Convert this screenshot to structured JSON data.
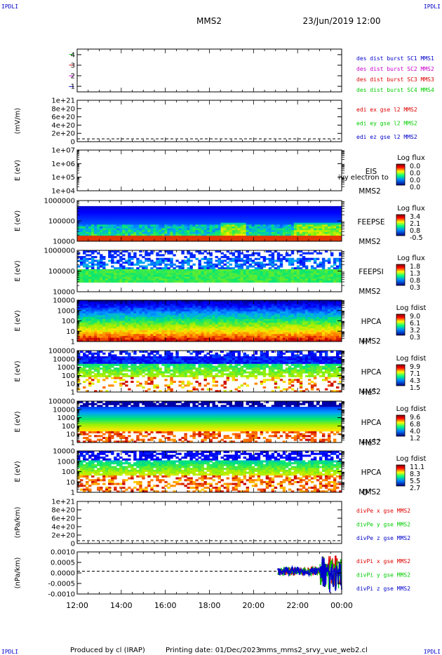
{
  "header": {
    "corner_label": "IPDLI",
    "spacecraft": "MMS2",
    "datetime": "23/Jun/2019 12:00"
  },
  "footer": {
    "produced_by": "Produced by cl (IRAP)",
    "printing_date": "Printing date: 01/Dec/2023",
    "script_name": "mms_mms2_srvy_vue_web2.cl"
  },
  "colors": {
    "panel_border": "#000000",
    "red": "#e00000",
    "green": "#00cc00",
    "blue": "#0000cc",
    "magenta": "#cc00cc"
  },
  "chart_data": [
    {
      "type": "line",
      "id": "burst",
      "ylabel": "",
      "yticks": [
        "1",
        "2",
        "3",
        "4"
      ],
      "ylim": [
        0.5,
        4.5
      ],
      "legend": [
        {
          "text": "des dist burst SC1 MMS1",
          "color": "#0000cc"
        },
        {
          "text": "des dist burst SC2 MMS2",
          "color": "#cc00cc"
        },
        {
          "text": "des dist burst SC3 MMS3",
          "color": "#e00000"
        },
        {
          "text": "des dist burst SC4 MMS4",
          "color": "#00cc00"
        }
      ],
      "segments": [
        {
          "y": 4,
          "x_hours": [
            11.95,
            12.0
          ],
          "color": "#00cc00"
        },
        {
          "y": 3,
          "x_hours": [
            11.95,
            12.0
          ],
          "color": "#e00000"
        },
        {
          "y": 2,
          "x_hours": [
            11.95,
            12.0
          ],
          "color": "#cc00cc"
        },
        {
          "y": 1,
          "x_hours": [
            11.95,
            12.0
          ],
          "color": "#0000cc"
        }
      ]
    },
    {
      "type": "line",
      "id": "edi",
      "ylabel": "(mV/m)",
      "yticks": [
        "0",
        "2e+20",
        "4e+20",
        "6e+20",
        "8e+20",
        "1e+21"
      ],
      "ylim": [
        0,
        1e+21
      ],
      "legend": [
        {
          "text": "edi ex gse l2 MMS2",
          "color": "#e00000"
        },
        {
          "text": "edi ey gse l2 MMS2",
          "color": "#00cc00"
        },
        {
          "text": "edi ez gse l2 MMS2",
          "color": "#0000cc"
        }
      ]
    },
    {
      "type": "heatmap",
      "id": "eis",
      "ylabel": "E (eV)",
      "yticks": [
        "1e+04",
        "1e+05",
        "1e+06",
        "1e+07"
      ],
      "scale": "log",
      "side_labels": [
        "EIS",
        "MMS2"
      ],
      "overlay_text": "ivy electron to",
      "colorbar": {
        "title": "Log flux",
        "ticks": [
          "0.0",
          "0.0",
          "0.0",
          "0.0"
        ]
      }
    },
    {
      "type": "heatmap",
      "id": "feepse",
      "ylabel": "E (eV)",
      "yticks": [
        "10000",
        "100000",
        "1000000"
      ],
      "scale": "log",
      "side_labels": [
        "FEEPSE",
        "MMS2"
      ],
      "colorbar": {
        "title": "Log flux",
        "ticks": [
          "3.4",
          "2.1",
          "0.8",
          "-0.5"
        ]
      }
    },
    {
      "type": "heatmap",
      "id": "feepsi",
      "ylabel": "E (eV)",
      "yticks": [
        "10000",
        "100000",
        "1000000"
      ],
      "scale": "log",
      "side_labels": [
        "FEEPSI",
        "MMS2"
      ],
      "colorbar": {
        "title": "Log flux",
        "ticks": [
          "1.8",
          "1.3",
          "0.8",
          "0.3"
        ]
      }
    },
    {
      "type": "heatmap",
      "id": "hpca_h",
      "ylabel": "E (eV)",
      "yticks": [
        "1",
        "10",
        "100",
        "1000",
        "10000"
      ],
      "scale": "log",
      "side_labels": [
        "HPCA",
        "MMS2"
      ],
      "species": {
        "base": "H",
        "sup": "+"
      },
      "colorbar": {
        "title": "Log fdist",
        "ticks": [
          "9.0",
          "6.1",
          "3.2",
          "0.3"
        ]
      }
    },
    {
      "type": "heatmap",
      "id": "hpca_he",
      "ylabel": "E (eV)",
      "yticks": [
        "1",
        "10",
        "100",
        "1000",
        "10000",
        "100000"
      ],
      "scale": "log",
      "side_labels": [
        "HPCA",
        "MMS2"
      ],
      "species": {
        "base": "He",
        "sup": "+"
      },
      "colorbar": {
        "title": "Log fdist",
        "ticks": [
          "9.9",
          "7.1",
          "4.3",
          "1.5"
        ]
      }
    },
    {
      "type": "heatmap",
      "id": "hpca_hepp",
      "ylabel": "E (eV)",
      "yticks": [
        "1",
        "10",
        "100",
        "1000",
        "10000",
        "100000"
      ],
      "scale": "log",
      "side_labels": [
        "HPCA",
        "MMS2"
      ],
      "species": {
        "base": "He",
        "sup": "++"
      },
      "colorbar": {
        "title": "Log fdist",
        "ticks": [
          "9.6",
          "6.8",
          "4.0",
          "1.2"
        ]
      }
    },
    {
      "type": "heatmap",
      "id": "hpca_o",
      "ylabel": "E (eV)",
      "yticks": [
        "1",
        "10",
        "100",
        "1000",
        "10000"
      ],
      "scale": "log",
      "side_labels": [
        "HPCA",
        "MMS2"
      ],
      "species": {
        "base": "O",
        "sup": "+"
      },
      "colorbar": {
        "title": "Log fdist",
        "ticks": [
          "11.1",
          "8.3",
          "5.5",
          "2.7"
        ]
      }
    },
    {
      "type": "line",
      "id": "divpe",
      "ylabel": "(nPa/km)",
      "yticks": [
        "0",
        "2e+20",
        "4e+20",
        "6e+20",
        "8e+20",
        "1e+21"
      ],
      "ylim": [
        0,
        1e+21
      ],
      "legend": [
        {
          "text": "divPe x gse MMS2",
          "color": "#e00000"
        },
        {
          "text": "divPe y gse MMS2",
          "color": "#00cc00"
        },
        {
          "text": "divPe z gse MMS2",
          "color": "#0000cc"
        }
      ]
    },
    {
      "type": "line",
      "id": "divpi",
      "ylabel": "(nPa/km)",
      "yticks": [
        "-0.0010",
        "-0.0005",
        "0.0000",
        "0.0005",
        "0.0010"
      ],
      "ylim": [
        -0.0013,
        0.0011
      ],
      "legend": [
        {
          "text": "divPi x gse MMS2",
          "color": "#e00000"
        },
        {
          "text": "divPi y gse MMS2",
          "color": "#00cc00"
        },
        {
          "text": "divPi z gse MMS2",
          "color": "#0000cc"
        }
      ],
      "data_start_hour": 21.1
    },
    {
      "type": "axis",
      "id": "time_axis",
      "xticks": [
        "12:00",
        "14:00",
        "16:00",
        "18:00",
        "20:00",
        "22:00",
        "00:00"
      ],
      "xlim_hours": [
        12,
        24
      ]
    }
  ]
}
